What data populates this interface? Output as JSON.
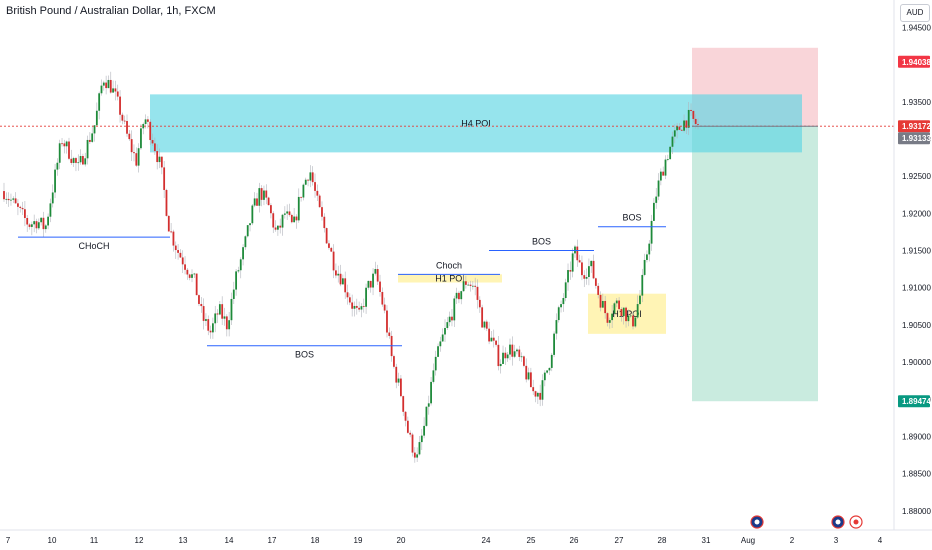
{
  "header": {
    "title": "British Pound / Australian Dollar, 1h, FXCM",
    "currency_button": "AUD"
  },
  "colors": {
    "up": "#26a69a",
    "down": "#ef5350",
    "candle_up": "#1e8a3a",
    "candle_down": "#d32f2f",
    "poi_h4": "#5dd6e4",
    "poi_h1": "#fff2a8",
    "stop_zone": "#f7c7cc",
    "target_zone": "#b7e4d4",
    "line_blue": "#2962ff",
    "last_price": "#e53935",
    "grey_tag": "#787b86",
    "green_tag": "#089981"
  },
  "chart_data": {
    "type": "candlestick",
    "title": "British Pound / Australian Dollar, 1h, FXCM",
    "ylim": [
      1.8785,
      1.946
    ],
    "yticks": [
      "1.94500",
      "1.93500",
      "1.93000",
      "1.92500",
      "1.92000",
      "1.91500",
      "1.91000",
      "1.90500",
      "1.90000",
      "1.89500",
      "1.89000",
      "1.88500",
      "1.88000"
    ],
    "ytick_values": [
      1.945,
      1.935,
      1.93,
      1.925,
      1.92,
      1.915,
      1.91,
      1.905,
      1.9,
      1.895,
      1.89,
      1.885,
      1.88
    ],
    "xticks": [
      "7",
      "10",
      "11",
      "12",
      "13",
      "14",
      "17",
      "18",
      "19",
      "20",
      "24",
      "25",
      "26",
      "27",
      "28",
      "31",
      "Aug",
      "2",
      "3",
      "4"
    ],
    "price_tags": [
      {
        "label": "1.94038",
        "value": 1.94038,
        "kind": "stop"
      },
      {
        "label": "1.93172",
        "value": 1.93172,
        "kind": "last"
      },
      {
        "label": "1.93133",
        "value": 1.93133,
        "kind": "grey"
      },
      {
        "label": "1.89474",
        "value": 1.89474,
        "kind": "target"
      }
    ],
    "zones": [
      {
        "label": "H4 POI",
        "y1": 1.936,
        "y2": 1.9282,
        "x1": "12",
        "x2": "31"
      },
      {
        "label": "H1 POI",
        "y1": 1.9118,
        "y2": 1.9107,
        "x1": "19",
        "x2": "24"
      },
      {
        "label": "H1 POI",
        "y1": 1.9092,
        "y2": 1.9038,
        "x1": "26",
        "x2": "28"
      }
    ],
    "lines": [
      {
        "label": "CHoCH",
        "y": 1.9168
      },
      {
        "label": "BOS",
        "y": 1.9022
      },
      {
        "label": "Choch",
        "y": 1.9118
      },
      {
        "label": "BOS",
        "y": 1.915
      },
      {
        "label": "BOS",
        "y": 1.9182
      }
    ],
    "position": {
      "entry": 1.93172,
      "stop": 1.94038,
      "target": 1.89474
    },
    "close_path": [
      1.923,
      1.9215,
      1.92,
      1.9185,
      1.919,
      1.918,
      1.924,
      1.93,
      1.928,
      1.926,
      1.929,
      1.932,
      1.9383,
      1.937,
      1.934,
      1.93,
      1.927,
      1.933,
      1.93,
      1.926,
      1.918,
      1.915,
      1.913,
      1.911,
      1.906,
      1.904,
      1.907,
      1.905,
      1.911,
      1.915,
      1.92,
      1.923,
      1.921,
      1.917,
      1.92,
      1.918,
      1.923,
      1.926,
      1.921,
      1.917,
      1.913,
      1.911,
      1.908,
      1.906,
      1.91,
      1.9118,
      1.907,
      1.9,
      1.896,
      1.89,
      1.887,
      1.892,
      1.899,
      1.903,
      1.906,
      1.909,
      1.911,
      1.91,
      1.905,
      1.903,
      1.9,
      1.902,
      1.901,
      1.899,
      1.896,
      1.896,
      1.9,
      1.906,
      1.91,
      1.915,
      1.912,
      1.913,
      1.909,
      1.906,
      1.908,
      1.907,
      1.905,
      1.909,
      1.916,
      1.923,
      1.927,
      1.93,
      1.932,
      1.933,
      1.9317
    ]
  }
}
